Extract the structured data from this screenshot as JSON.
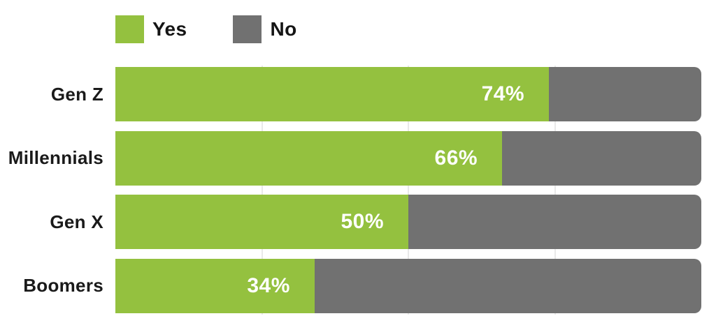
{
  "chart_data": {
    "type": "bar",
    "orientation": "horizontal",
    "stacked": true,
    "categories": [
      "Gen Z",
      "Millennials",
      "Gen X",
      "Boomers"
    ],
    "series": [
      {
        "name": "Yes",
        "color": "#94C13F",
        "values": [
          74,
          66,
          50,
          34
        ]
      },
      {
        "name": "No",
        "color": "#717171",
        "values": [
          26,
          34,
          50,
          66
        ]
      }
    ],
    "value_labels": [
      "74%",
      "66%",
      "50%",
      "34%"
    ],
    "xlim": [
      0,
      100
    ],
    "gridlines_percent": [
      25,
      50,
      75
    ],
    "grid_color": "#E9E9E9",
    "legend_position": "top",
    "value_label_color": "#FFFFFF",
    "category_label_color": "#1A1A1A",
    "background_color": "#FFFFFF"
  }
}
